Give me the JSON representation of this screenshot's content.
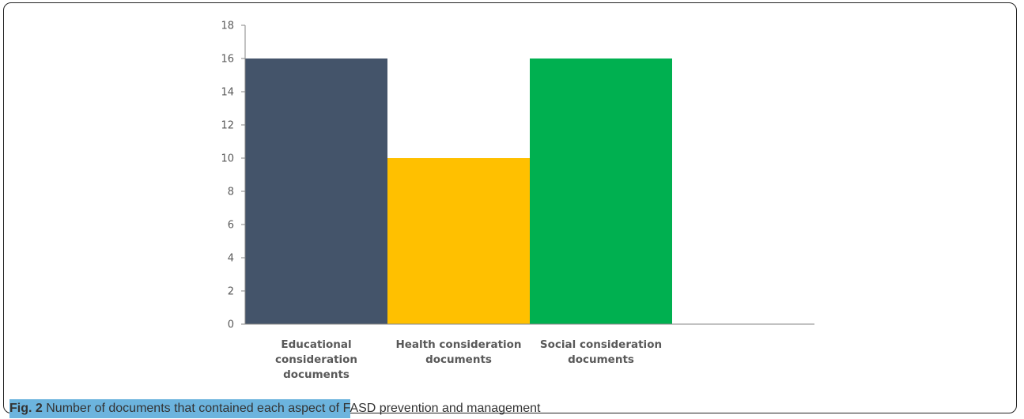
{
  "chart_data": {
    "type": "bar",
    "categories": [
      "Educational consideration documents",
      "Health consideration documents",
      "Social consideration documents"
    ],
    "category_label_lines": [
      [
        "Educational",
        "consideration",
        "documents"
      ],
      [
        "Health consideration",
        "documents"
      ],
      [
        "Social consideration",
        "documents"
      ]
    ],
    "values": [
      16,
      10,
      16
    ],
    "bar_colors": [
      "#44546A",
      "#FFC000",
      "#00B050"
    ],
    "ylim": [
      0,
      18
    ],
    "y_ticks": [
      "0",
      "2",
      "4",
      "6",
      "8",
      "10",
      "12",
      "14",
      "16",
      "18"
    ],
    "grid": false,
    "legend": "none"
  },
  "caption": {
    "figure_label": "Fig. 2",
    "text": "Number of documents that contained each aspect of FASD prevention and management",
    "highlight_color": "#6CB4DE"
  }
}
